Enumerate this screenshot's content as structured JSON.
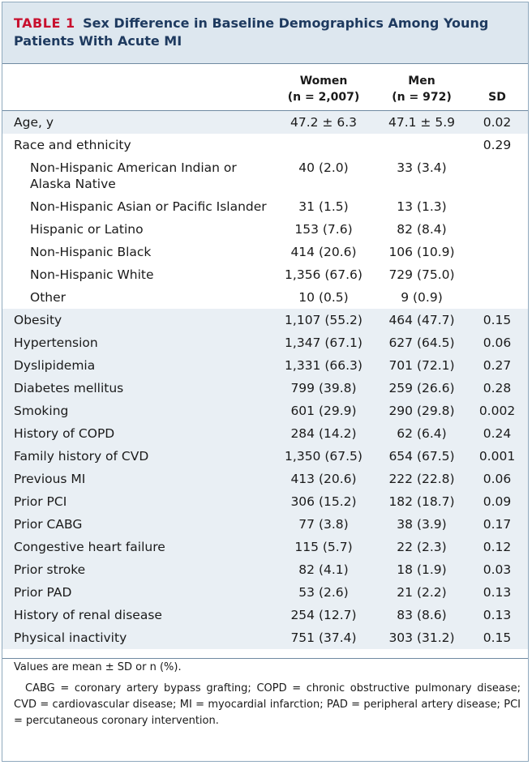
{
  "title": {
    "label": "TABLE 1",
    "text": "Sex Difference in Baseline Demographics Among Young Patients With Acute MI"
  },
  "columns": {
    "women": {
      "name": "Women",
      "n": "(n = 2,007)"
    },
    "men": {
      "name": "Men",
      "n": "(n = 972)"
    },
    "sd": {
      "name": "SD"
    }
  },
  "rows": [
    {
      "label": "Age, y",
      "women": "47.2 ± 6.3",
      "men": "47.1 ± 5.9",
      "sd": "0.02"
    },
    {
      "label": "Race and ethnicity",
      "women": "",
      "men": "",
      "sd": "0.29"
    },
    {
      "label": "Non-Hispanic American Indian or Alaska Native",
      "women": "40 (2.0)",
      "men": "33 (3.4)",
      "sd": ""
    },
    {
      "label": "Non-Hispanic Asian or Pacific Islander",
      "women": "31 (1.5)",
      "men": "13 (1.3)",
      "sd": ""
    },
    {
      "label": "Hispanic or Latino",
      "women": "153 (7.6)",
      "men": "82 (8.4)",
      "sd": ""
    },
    {
      "label": "Non-Hispanic Black",
      "women": "414 (20.6)",
      "men": "106 (10.9)",
      "sd": ""
    },
    {
      "label": "Non-Hispanic White",
      "women": "1,356 (67.6)",
      "men": "729 (75.0)",
      "sd": ""
    },
    {
      "label": "Other",
      "women": "10 (0.5)",
      "men": "9 (0.9)",
      "sd": ""
    },
    {
      "label": "Obesity",
      "women": "1,107 (55.2)",
      "men": "464 (47.7)",
      "sd": "0.15"
    },
    {
      "label": "Hypertension",
      "women": "1,347 (67.1)",
      "men": "627 (64.5)",
      "sd": "0.06"
    },
    {
      "label": "Dyslipidemia",
      "women": "1,331 (66.3)",
      "men": "701 (72.1)",
      "sd": "0.27"
    },
    {
      "label": "Diabetes mellitus",
      "women": "799 (39.8)",
      "men": "259 (26.6)",
      "sd": "0.28"
    },
    {
      "label": "Smoking",
      "women": "601 (29.9)",
      "men": "290 (29.8)",
      "sd": "0.002"
    },
    {
      "label": "History of COPD",
      "women": "284 (14.2)",
      "men": "62 (6.4)",
      "sd": "0.24"
    },
    {
      "label": "Family history of CVD",
      "women": "1,350 (67.5)",
      "men": "654 (67.5)",
      "sd": "0.001"
    },
    {
      "label": "Previous MI",
      "women": "413 (20.6)",
      "men": "222 (22.8)",
      "sd": "0.06"
    },
    {
      "label": "Prior PCI",
      "women": "306 (15.2)",
      "men": "182 (18.7)",
      "sd": "0.09"
    },
    {
      "label": "Prior CABG",
      "women": "77 (3.8)",
      "men": "38 (3.9)",
      "sd": "0.17"
    },
    {
      "label": "Congestive heart failure",
      "women": "115 (5.7)",
      "men": "22 (2.3)",
      "sd": "0.12"
    },
    {
      "label": "Prior stroke",
      "women": "82 (4.1)",
      "men": "18 (1.9)",
      "sd": "0.03"
    },
    {
      "label": "Prior PAD",
      "women": "53 (2.6)",
      "men": "21 (2.2)",
      "sd": "0.13"
    },
    {
      "label": "History of renal disease",
      "women": "254 (12.7)",
      "men": "83 (8.6)",
      "sd": "0.13"
    },
    {
      "label": "Physical inactivity",
      "women": "751 (37.4)",
      "men": "303 (31.2)",
      "sd": "0.15"
    }
  ],
  "footnotes": {
    "note": "Values are mean ± SD or n (%).",
    "abbreviations": "CABG = coronary artery bypass grafting; COPD = chronic obstructive pulmonary disease; CVD = cardiovascular disease; MI = myocardial infarction; PAD = peripheral artery disease; PCI = percutaneous coronary intervention."
  }
}
